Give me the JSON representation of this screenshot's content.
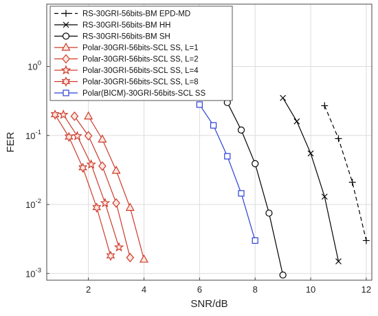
{
  "chart_data": {
    "type": "line",
    "xlabel": "SNR/dB",
    "ylabel": "FER",
    "xlim": [
      0.5,
      12.2
    ],
    "ylim": [
      0.0008,
      8
    ],
    "yscale": "log",
    "grid": true,
    "legend_position": "top-left",
    "x_ticks": [
      {
        "value": 2,
        "label": "2"
      },
      {
        "value": 4,
        "label": "4"
      },
      {
        "value": 6,
        "label": "6"
      },
      {
        "value": 8,
        "label": "8"
      },
      {
        "value": 10,
        "label": "10"
      },
      {
        "value": 12,
        "label": "12"
      }
    ],
    "y_ticks": [
      {
        "value": 0.001,
        "base": "10",
        "exp": "-3"
      },
      {
        "value": 0.01,
        "base": "10",
        "exp": "-2"
      },
      {
        "value": 0.1,
        "base": "10",
        "exp": "-1"
      },
      {
        "value": 1,
        "base": "10",
        "exp": "0"
      }
    ],
    "series": [
      {
        "name": "RS-30GRI-56bits-BM EPD-MD",
        "color": "#000000",
        "dash": "6,4",
        "marker": "plus",
        "x": [
          10.5,
          11,
          11.5,
          12
        ],
        "y": [
          0.27,
          0.09,
          0.021,
          0.003
        ]
      },
      {
        "name": "RS-30GRI-56bits-BM HH",
        "color": "#000000",
        "dash": "",
        "marker": "x",
        "x": [
          9,
          9.5,
          10,
          10.5,
          11
        ],
        "y": [
          0.35,
          0.16,
          0.055,
          0.013,
          0.0015
        ]
      },
      {
        "name": "RS-30GRI-56bits-BM SH",
        "color": "#000000",
        "dash": "",
        "marker": "circle",
        "x": [
          7,
          7.5,
          8,
          8.5,
          9
        ],
        "y": [
          0.3,
          0.12,
          0.039,
          0.0075,
          0.00095
        ]
      },
      {
        "name": "Polar-30GRI-56bits-SCL SS, L=1",
        "color": "#cc3a2a",
        "dash": "",
        "marker": "triangle",
        "x": [
          2,
          2.5,
          3,
          3.5,
          4
        ],
        "y": [
          0.19,
          0.088,
          0.031,
          0.009,
          0.0016
        ]
      },
      {
        "name": "Polar-30GRI-56bits-SCL SS, L=2",
        "color": "#cc3a2a",
        "dash": "",
        "marker": "diamond",
        "x": [
          1.5,
          2,
          2.5,
          3,
          3.5
        ],
        "y": [
          0.19,
          0.099,
          0.036,
          0.0105,
          0.0017
        ]
      },
      {
        "name": "Polar-30GRI-56bits-SCL SS, L=4",
        "color": "#cc3a2a",
        "dash": "",
        "marker": "star5",
        "x": [
          1.1,
          1.6,
          2.1,
          2.6,
          3.1
        ],
        "y": [
          0.2,
          0.098,
          0.038,
          0.0105,
          0.0024
        ]
      },
      {
        "name": "Polar-30GRI-56bits-SCL SS, L=8",
        "color": "#cc3a2a",
        "dash": "",
        "marker": "star6",
        "x": [
          0.8,
          1.3,
          1.8,
          2.3,
          2.8
        ],
        "y": [
          0.2,
          0.095,
          0.034,
          0.009,
          0.0018
        ]
      },
      {
        "name": "Polar(BICM)-30GRI-56bits-SCL SS",
        "color": "#2b3fd6",
        "dash": "",
        "marker": "square",
        "x": [
          6,
          6.5,
          7,
          7.5,
          8
        ],
        "y": [
          0.28,
          0.14,
          0.05,
          0.0145,
          0.003
        ]
      }
    ]
  }
}
